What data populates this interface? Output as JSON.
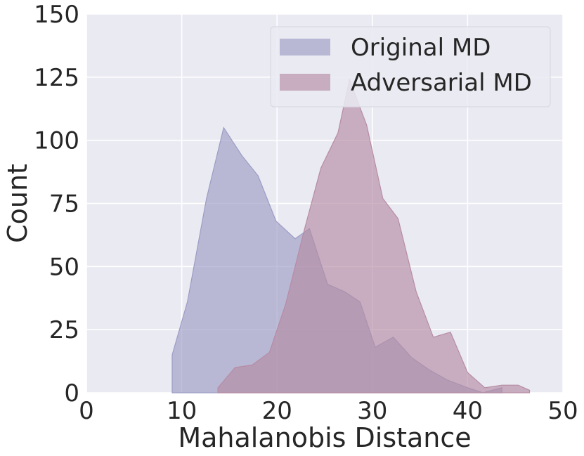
{
  "chart_data": {
    "type": "area",
    "title": "",
    "xlabel": "Mahalanobis Distance",
    "ylabel": "Count",
    "xlim": [
      0,
      50
    ],
    "ylim": [
      0,
      150
    ],
    "xticks": [
      0,
      10,
      20,
      30,
      40,
      50
    ],
    "yticks": [
      0,
      25,
      50,
      75,
      100,
      125,
      150
    ],
    "grid": true,
    "legend_position": "top-right",
    "background_color": "#EAEAF2",
    "grid_color": "#FFFFFF",
    "series": [
      {
        "name": "Original MD",
        "color": "#9C9CC4",
        "opacity": 0.65,
        "x": [
          9,
          9,
          10.6,
          12.6,
          14.4,
          16.3,
          18,
          19.9,
          21.9,
          23.4,
          25.3,
          27.1,
          28.7,
          30.3,
          32.2,
          34.1,
          36,
          37.9,
          40,
          41.6,
          43.6,
          43.6
        ],
        "y": [
          0,
          15,
          36,
          77,
          105,
          94,
          86,
          68,
          61,
          65,
          43,
          40,
          36,
          18,
          22,
          14,
          9,
          5,
          2,
          0,
          2,
          0
        ]
      },
      {
        "name": "Adversarial MD",
        "color": "#B68CA4",
        "opacity": 0.65,
        "x": [
          13.8,
          13.8,
          15.6,
          17.4,
          19.2,
          20.9,
          22.9,
          24.6,
          26.4,
          27.6,
          29.4,
          31.1,
          32.7,
          34.6,
          36.4,
          38.2,
          40,
          41.8,
          43.6,
          45.3,
          46.5,
          46.5
        ],
        "y": [
          0,
          2,
          10,
          11,
          16,
          35,
          65,
          89,
          103,
          124,
          106,
          77,
          69,
          40,
          22,
          24,
          8,
          2,
          3,
          3,
          1,
          0
        ]
      }
    ]
  }
}
